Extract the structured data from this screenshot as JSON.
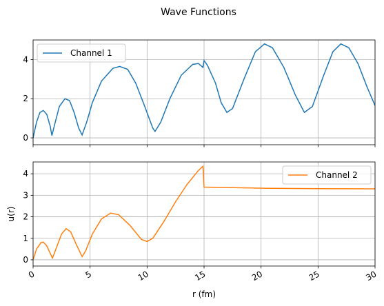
{
  "title": "Wave Functions",
  "chart_data": [
    {
      "type": "line",
      "xlim": [
        0,
        30
      ],
      "xticks": [
        0,
        5,
        10,
        15,
        20,
        25,
        30
      ],
      "ylim": [
        -0.35,
        5.0
      ],
      "yticks": [
        0,
        2,
        4
      ],
      "grid": true,
      "legend": "upper left",
      "series": [
        {
          "name": "Channel 1",
          "color": "#1f77b4",
          "x": [
            0,
            0.3,
            0.6,
            0.9,
            1.2,
            1.5,
            1.65,
            1.9,
            2.3,
            2.8,
            3.2,
            3.6,
            4.0,
            4.3,
            4.7,
            5.2,
            6.0,
            7.0,
            7.6,
            8.3,
            9.0,
            9.8,
            10.5,
            10.7,
            11.2,
            12.0,
            13.0,
            14.0,
            14.5,
            14.9,
            15.0,
            15.3,
            16.0,
            16.5,
            17.0,
            17.5,
            18.5,
            19.5,
            20.3,
            21.0,
            22.0,
            23.0,
            23.8,
            24.5,
            25.5,
            26.3,
            27.0,
            27.7,
            28.5,
            29.3,
            30
          ],
          "values": [
            0,
            0.8,
            1.3,
            1.4,
            1.2,
            0.6,
            0.12,
            0.7,
            1.6,
            2.0,
            1.9,
            1.3,
            0.5,
            0.15,
            0.8,
            1.8,
            2.9,
            3.55,
            3.65,
            3.5,
            2.8,
            1.6,
            0.5,
            0.33,
            0.8,
            2.0,
            3.2,
            3.75,
            3.8,
            3.6,
            3.95,
            3.7,
            2.8,
            1.8,
            1.3,
            1.5,
            3.0,
            4.4,
            4.8,
            4.6,
            3.6,
            2.2,
            1.3,
            1.6,
            3.2,
            4.4,
            4.8,
            4.6,
            3.8,
            2.6,
            1.65
          ]
        }
      ]
    },
    {
      "type": "line",
      "xlabel": "r (fm)",
      "ylabel": "u(r)",
      "xlim": [
        0,
        30
      ],
      "xticks": [
        0,
        5,
        10,
        15,
        20,
        25,
        30
      ],
      "ylim": [
        -0.29,
        4.55
      ],
      "yticks": [
        0,
        1,
        2,
        3,
        4
      ],
      "grid": true,
      "legend": "upper right",
      "series": [
        {
          "name": "Channel 2",
          "color": "#ff7f0e",
          "x": [
            0,
            0.3,
            0.7,
            0.9,
            1.2,
            1.5,
            1.7,
            2.0,
            2.5,
            2.9,
            3.3,
            3.8,
            4.3,
            4.6,
            5.2,
            6.0,
            6.8,
            7.5,
            8.5,
            9.5,
            10.0,
            10.5,
            11.5,
            12.5,
            13.5,
            14.5,
            14.9,
            15.0,
            20,
            25,
            30
          ],
          "values": [
            0,
            0.5,
            0.8,
            0.82,
            0.65,
            0.3,
            0.08,
            0.5,
            1.2,
            1.45,
            1.3,
            0.7,
            0.15,
            0.4,
            1.2,
            1.9,
            2.17,
            2.1,
            1.6,
            0.95,
            0.85,
            1.0,
            1.8,
            2.7,
            3.5,
            4.15,
            4.35,
            3.38,
            3.33,
            3.31,
            3.3
          ]
        }
      ]
    }
  ]
}
